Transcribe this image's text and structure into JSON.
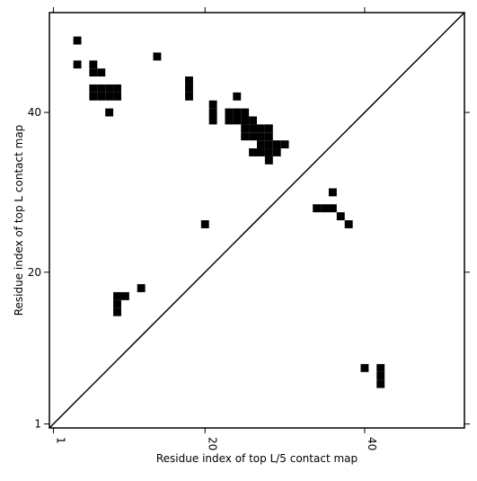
{
  "chart_data": {
    "type": "scatter",
    "x_label": "Residue index of top L/5 contact map",
    "y_label": "Residue index of top L contact map",
    "xlim": [
      0.5,
      52.5
    ],
    "ylim": [
      0.5,
      52.5
    ],
    "xticks": [
      1,
      20,
      40
    ],
    "yticks": [
      1,
      20,
      40
    ],
    "marker": "square",
    "series": [
      {
        "color": "#000000",
        "x": [
          4,
          4,
          6,
          6,
          7,
          6,
          7,
          8,
          9,
          6,
          7,
          8,
          9,
          8,
          14,
          18,
          18,
          18,
          21,
          21,
          21,
          24,
          23,
          24,
          25,
          23,
          24,
          25,
          26,
          25,
          26,
          27,
          28,
          25,
          26,
          27,
          28,
          27,
          28,
          29,
          30,
          26,
          27,
          28,
          29,
          28,
          20,
          12,
          9,
          10,
          9,
          9
        ],
        "y": [
          49,
          46,
          46,
          45,
          45,
          43,
          43,
          43,
          43,
          42,
          42,
          42,
          42,
          40,
          47,
          44,
          43,
          42,
          41,
          40,
          39,
          42,
          40,
          40,
          40,
          39,
          39,
          39,
          39,
          38,
          38,
          38,
          38,
          37,
          37,
          37,
          37,
          36,
          36,
          36,
          36,
          35,
          35,
          35,
          35,
          34,
          26,
          18,
          17,
          17,
          16,
          15
        ]
      },
      {
        "color": "#000000",
        "x": [
          36,
          34,
          35,
          36,
          37,
          38,
          40,
          42,
          42,
          42
        ],
        "y": [
          30,
          28,
          28,
          28,
          27,
          26,
          8,
          8,
          7,
          6
        ]
      }
    ]
  }
}
